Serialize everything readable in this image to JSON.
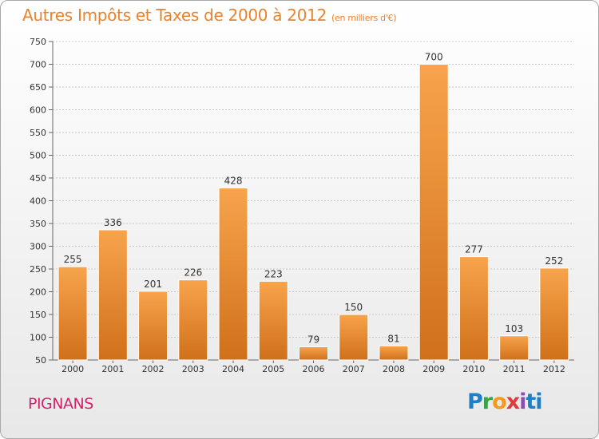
{
  "header": {
    "title": "Autres Impôts et Taxes de 2000 à 2012",
    "unit": "(en milliers d'€)"
  },
  "footer": {
    "commune": "PIGNANS",
    "logo_text": "Proxiti"
  },
  "colors": {
    "bar_light": "#f7a44c",
    "bar_dark": "#d0701a",
    "title": "#e8832e",
    "commune": "#d4226a"
  },
  "chart_data": {
    "type": "bar",
    "title": "Autres Impôts et Taxes de 2000 à 2012",
    "subtitle": "(en milliers d'€)",
    "categories": [
      "2000",
      "2001",
      "2002",
      "2003",
      "2004",
      "2005",
      "2006",
      "2007",
      "2008",
      "2009",
      "2010",
      "2011",
      "2012"
    ],
    "values": [
      255,
      336,
      201,
      226,
      428,
      223,
      79,
      150,
      81,
      700,
      277,
      103,
      252
    ],
    "data_labels": [
      "255",
      "336",
      "201",
      "226",
      "428",
      "223",
      "79",
      "150",
      "81",
      "700",
      "277",
      "103",
      "252"
    ],
    "ylim": [
      50,
      750
    ],
    "yticks": [
      50,
      100,
      150,
      200,
      250,
      300,
      350,
      400,
      450,
      500,
      550,
      600,
      650,
      700,
      750
    ],
    "ytick_labels": [
      "50",
      "100",
      "150",
      "200",
      "250",
      "300",
      "350",
      "400",
      "450",
      "500",
      "550",
      "600",
      "650",
      "700",
      "750"
    ],
    "grid": true,
    "xlabel": "",
    "ylabel": ""
  }
}
